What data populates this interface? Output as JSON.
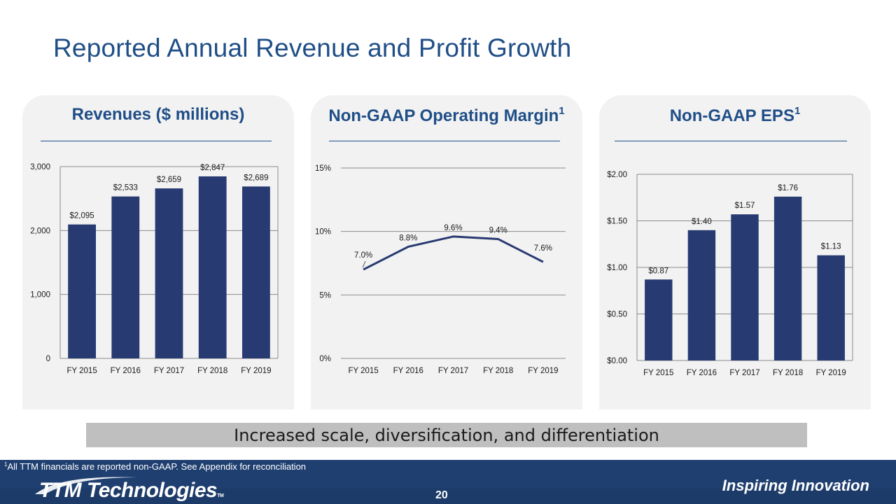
{
  "title": "Reported Annual Revenue and Profit Growth",
  "panels": {
    "revenue": {
      "heading": "Revenues ($ millions)"
    },
    "margin": {
      "heading": "Non-GAAP Operating Margin",
      "heading_sup": "1"
    },
    "eps": {
      "heading": "Non-GAAP EPS",
      "heading_sup": "1"
    }
  },
  "tagline": "Increased scale, diversification, and differentiation",
  "footnote": {
    "sup": "1",
    "text": "All TTM financials are reported non-GAAP.  See Appendix for reconciliation"
  },
  "footer": {
    "logo_text": "TTM Technologies",
    "logo_tm": "TM",
    "page_number": "20",
    "slogan": "Inspiring Innovation"
  },
  "colors": {
    "title": "#1f4e87",
    "bar": "#283a72",
    "line": "#283a72",
    "panel_bg": "#f2f2f2",
    "footer_bg": "#1f3f70",
    "tagline_bg": "#bfbfbf"
  },
  "chart_data": [
    {
      "type": "bar",
      "categories": [
        "FY 2015",
        "FY 2016",
        "FY 2017",
        "FY 2018",
        "FY 2019"
      ],
      "values": [
        2095,
        2533,
        2659,
        2847,
        2689
      ],
      "data_labels": [
        "$2,095",
        "$2,533",
        "$2,659",
        "$2,847",
        "$2,689"
      ],
      "ylim": [
        0,
        3000
      ],
      "yticks": [
        0,
        1000,
        2000,
        3000
      ],
      "ytick_labels": [
        "0",
        "1,000",
        "2,000",
        "3,000"
      ],
      "grid": true
    },
    {
      "type": "line",
      "categories": [
        "FY 2015",
        "FY 2016",
        "FY 2017",
        "FY 2018",
        "FY 2019"
      ],
      "values": [
        7.0,
        8.8,
        9.6,
        9.4,
        7.6
      ],
      "data_labels": [
        "7.0%",
        "8.8%",
        "9.6%",
        "9.4%",
        "7.6%"
      ],
      "ylim": [
        0,
        15
      ],
      "yticks": [
        0,
        5,
        10,
        15
      ],
      "ytick_labels": [
        "0%",
        "5%",
        "10%",
        "15%"
      ],
      "grid": true
    },
    {
      "type": "bar",
      "categories": [
        "FY 2015",
        "FY 2016",
        "FY 2017",
        "FY 2018",
        "FY 2019"
      ],
      "values": [
        0.87,
        1.4,
        1.57,
        1.76,
        1.13
      ],
      "data_labels": [
        "$0.87",
        "$1.40",
        "$1.57",
        "$1.76",
        "$1.13"
      ],
      "ylim": [
        0,
        2.0
      ],
      "yticks": [
        0,
        0.5,
        1.0,
        1.5,
        2.0
      ],
      "ytick_labels": [
        "$0.00",
        "$0.50",
        "$1.00",
        "$1.50",
        "$2.00"
      ],
      "grid": true
    }
  ]
}
